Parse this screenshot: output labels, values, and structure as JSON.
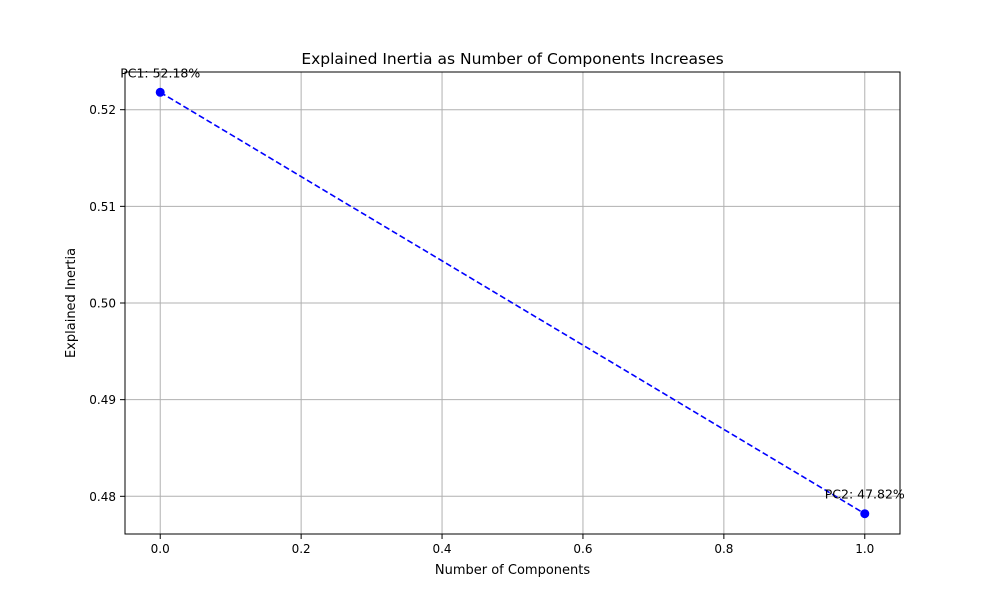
{
  "chart_data": {
    "type": "line",
    "title": "Explained Inertia as Number of Components Increases",
    "xlabel": "Number of Components",
    "ylabel": "Explained Inertia",
    "xlim": [
      -0.05,
      1.05
    ],
    "ylim": [
      0.4761,
      0.5239
    ],
    "xticks": [
      0.0,
      0.2,
      0.4,
      0.6,
      0.8,
      1.0
    ],
    "xtick_labels": [
      "0.0",
      "0.2",
      "0.4",
      "0.6",
      "0.8",
      "1.0"
    ],
    "yticks": [
      0.48,
      0.49,
      0.5,
      0.51,
      0.52
    ],
    "ytick_labels": [
      "0.48",
      "0.49",
      "0.50",
      "0.51",
      "0.52"
    ],
    "grid": true,
    "series": [
      {
        "x": [
          0,
          1
        ],
        "y": [
          0.5218,
          0.4782
        ],
        "color": "#0000ff",
        "line_style": "dashed",
        "marker": "circle",
        "point_labels": [
          "PC1: 52.18%",
          "PC2: 47.82%"
        ]
      }
    ]
  }
}
